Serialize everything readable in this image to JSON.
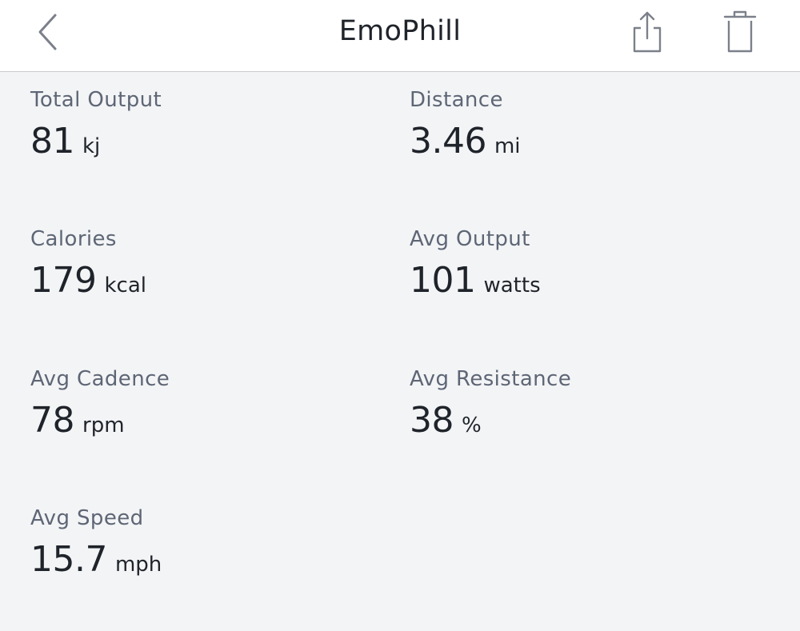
{
  "header": {
    "title": "EmoPhill",
    "back_icon": "chevron-left-icon",
    "share_icon": "share-icon",
    "trash_icon": "trash-icon"
  },
  "stats": [
    {
      "label": "Total Output",
      "value": "81",
      "unit": "kj"
    },
    {
      "label": "Distance",
      "value": "3.46",
      "unit": "mi"
    },
    {
      "label": "Calories",
      "value": "179",
      "unit": "kcal"
    },
    {
      "label": "Avg Output",
      "value": "101",
      "unit": "watts"
    },
    {
      "label": "Avg Cadence",
      "value": "78",
      "unit": "rpm"
    },
    {
      "label": "Avg Resistance",
      "value": "38",
      "unit": "%"
    },
    {
      "label": "Avg Speed",
      "value": "15.7",
      "unit": "mph"
    }
  ],
  "colors": {
    "background": "#f3f4f6",
    "header_background": "#ffffff",
    "label": "#5e6675",
    "value": "#1f232a",
    "icon": "#7b808a"
  }
}
